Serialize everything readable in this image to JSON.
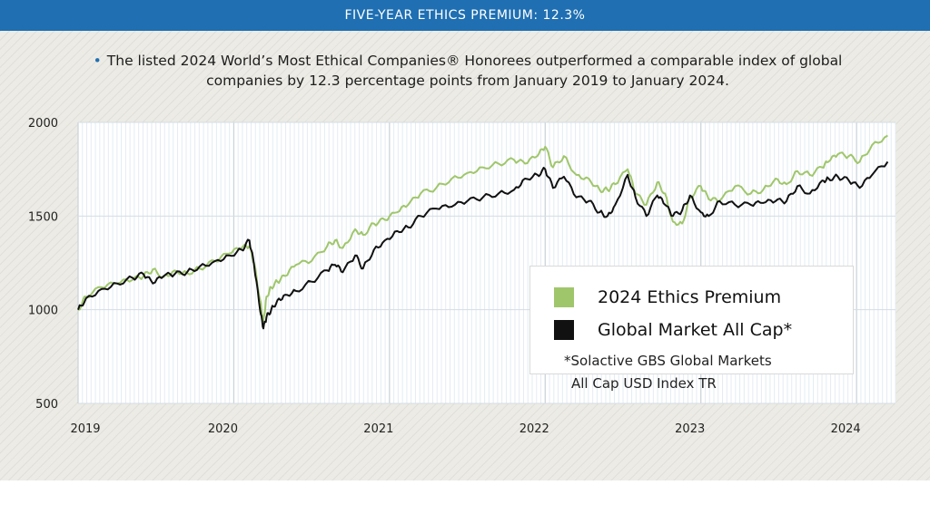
{
  "banner": "FIVE-YEAR ETHICS PREMIUM: 12.3%",
  "subtitle_line1": "The listed 2024 World’s Most Ethical Companies® Honorees outperformed a comparable index of global",
  "subtitle_line2": "companies by 12.3 percentage points from January 2019 to January 2024.",
  "colors": {
    "ethics": "#a0c66b",
    "market": "#111111",
    "banner": "#1f6fb2"
  },
  "legend": {
    "ethics_label": "2024 Ethics Premium",
    "market_label": "Global Market All Cap*",
    "note_line1": "*Solactive GBS Global Markets",
    "note_line2": "All Cap USD Index TR"
  },
  "chart_data": {
    "type": "line",
    "xlim": [
      2019.0,
      2024.25
    ],
    "ylim": [
      500,
      2000
    ],
    "x_ticks": [
      "2019",
      "2020",
      "2021",
      "2022",
      "2023",
      "2024"
    ],
    "y_ticks": [
      "500",
      "1000",
      "1500",
      "2000"
    ],
    "grid": true,
    "legend_position": "lower-right",
    "series": [
      {
        "name": "2024 Ethics Premium",
        "x": [
          2019.0,
          2019.05,
          2019.15,
          2019.25,
          2019.35,
          2019.42,
          2019.48,
          2019.55,
          2019.62,
          2019.7,
          2019.78,
          2019.88,
          2019.97,
          2020.05,
          2020.1,
          2020.13,
          2020.17,
          2020.19,
          2020.21,
          2020.24,
          2020.28,
          2020.33,
          2020.4,
          2020.5,
          2020.6,
          2020.65,
          2020.7,
          2020.78,
          2020.83,
          2020.9,
          2020.97,
          2021.05,
          2021.12,
          2021.2,
          2021.3,
          2021.4,
          2021.5,
          2021.6,
          2021.7,
          2021.8,
          2021.87,
          2021.95,
          2022.0,
          2022.05,
          2022.12,
          2022.2,
          2022.28,
          2022.35,
          2022.4,
          2022.45,
          2022.53,
          2022.58,
          2022.65,
          2022.72,
          2022.77,
          2022.82,
          2022.88,
          2022.93,
          2023.0,
          2023.05,
          2023.12,
          2023.22,
          2023.32,
          2023.4,
          2023.48,
          2023.55,
          2023.62,
          2023.7,
          2023.78,
          2023.82,
          2023.88,
          2023.95,
          2024.02,
          2024.1,
          2024.2
        ],
        "y": [
          1000,
          1070,
          1120,
          1140,
          1160,
          1180,
          1215,
          1175,
          1210,
          1195,
          1220,
          1260,
          1300,
          1330,
          1340,
          1250,
          1050,
          940,
          1070,
          1120,
          1150,
          1180,
          1240,
          1260,
          1340,
          1370,
          1330,
          1430,
          1400,
          1460,
          1480,
          1520,
          1560,
          1620,
          1650,
          1700,
          1730,
          1760,
          1780,
          1800,
          1780,
          1820,
          1870,
          1760,
          1820,
          1720,
          1700,
          1640,
          1640,
          1670,
          1750,
          1620,
          1560,
          1680,
          1620,
          1470,
          1460,
          1600,
          1660,
          1590,
          1580,
          1660,
          1620,
          1640,
          1700,
          1670,
          1740,
          1720,
          1760,
          1790,
          1830,
          1820,
          1790,
          1880,
          1930
        ]
      },
      {
        "name": "Global Market All Cap*",
        "x": [
          2019.0,
          2019.05,
          2019.15,
          2019.25,
          2019.35,
          2019.42,
          2019.48,
          2019.55,
          2019.62,
          2019.7,
          2019.78,
          2019.88,
          2019.97,
          2020.05,
          2020.1,
          2020.13,
          2020.17,
          2020.19,
          2020.21,
          2020.24,
          2020.28,
          2020.33,
          2020.4,
          2020.5,
          2020.6,
          2020.65,
          2020.7,
          2020.78,
          2020.83,
          2020.9,
          2020.97,
          2021.05,
          2021.12,
          2021.2,
          2021.3,
          2021.4,
          2021.5,
          2021.6,
          2021.7,
          2021.8,
          2021.87,
          2021.95,
          2022.0,
          2022.05,
          2022.12,
          2022.2,
          2022.28,
          2022.35,
          2022.4,
          2022.45,
          2022.53,
          2022.58,
          2022.65,
          2022.72,
          2022.77,
          2022.82,
          2022.88,
          2022.93,
          2023.0,
          2023.05,
          2023.12,
          2023.22,
          2023.32,
          2023.4,
          2023.48,
          2023.55,
          2023.62,
          2023.7,
          2023.78,
          2023.82,
          2023.88,
          2023.95,
          2024.02,
          2024.1,
          2024.2
        ],
        "y": [
          1000,
          1060,
          1110,
          1140,
          1170,
          1190,
          1140,
          1180,
          1190,
          1200,
          1230,
          1260,
          1290,
          1320,
          1370,
          1240,
          990,
          900,
          960,
          1000,
          1050,
          1080,
          1100,
          1150,
          1210,
          1240,
          1200,
          1290,
          1220,
          1320,
          1370,
          1420,
          1440,
          1500,
          1540,
          1550,
          1580,
          1600,
          1620,
          1640,
          1700,
          1720,
          1750,
          1650,
          1710,
          1600,
          1580,
          1520,
          1500,
          1560,
          1720,
          1600,
          1500,
          1610,
          1560,
          1500,
          1530,
          1610,
          1520,
          1500,
          1580,
          1560,
          1560,
          1570,
          1580,
          1580,
          1660,
          1620,
          1690,
          1700,
          1710,
          1690,
          1650,
          1720,
          1790
        ]
      }
    ]
  }
}
